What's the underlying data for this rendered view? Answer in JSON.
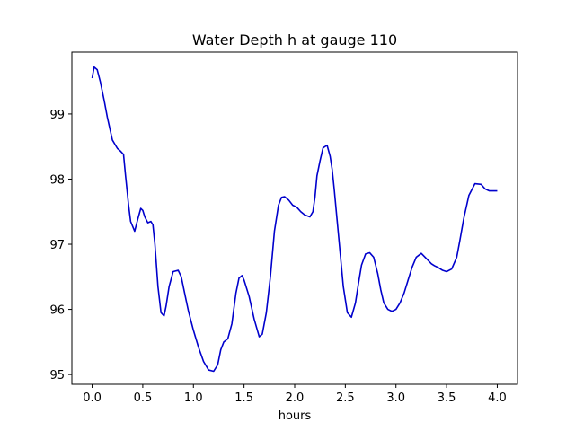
{
  "chart_data": {
    "type": "line",
    "title": "Water Depth h at gauge 110",
    "xlabel": "hours",
    "ylabel": "",
    "xlim": [
      -0.2,
      4.2
    ],
    "ylim": [
      94.85,
      99.95
    ],
    "xticks": [
      0.0,
      0.5,
      1.0,
      1.5,
      2.0,
      2.5,
      3.0,
      3.5,
      4.0
    ],
    "xtick_labels": [
      "0.0",
      "0.5",
      "1.0",
      "1.5",
      "2.0",
      "2.5",
      "3.0",
      "3.5",
      "4.0"
    ],
    "yticks": [
      95,
      96,
      97,
      98,
      99
    ],
    "ytick_labels": [
      "95",
      "96",
      "97",
      "98",
      "99"
    ],
    "grid": false,
    "series": [
      {
        "color": "#0000cc",
        "x": [
          0.0,
          0.02,
          0.05,
          0.08,
          0.12,
          0.15,
          0.2,
          0.25,
          0.28,
          0.31,
          0.33,
          0.36,
          0.38,
          0.42,
          0.45,
          0.48,
          0.5,
          0.52,
          0.55,
          0.58,
          0.6,
          0.62,
          0.65,
          0.68,
          0.71,
          0.73,
          0.76,
          0.8,
          0.85,
          0.88,
          0.92,
          0.95,
          1.0,
          1.05,
          1.1,
          1.15,
          1.2,
          1.24,
          1.27,
          1.3,
          1.34,
          1.38,
          1.42,
          1.45,
          1.48,
          1.5,
          1.55,
          1.6,
          1.65,
          1.68,
          1.72,
          1.76,
          1.8,
          1.84,
          1.87,
          1.9,
          1.94,
          1.98,
          2.02,
          2.06,
          2.1,
          2.15,
          2.18,
          2.2,
          2.22,
          2.25,
          2.28,
          2.32,
          2.35,
          2.37,
          2.39,
          2.42,
          2.45,
          2.48,
          2.52,
          2.56,
          2.6,
          2.63,
          2.66,
          2.7,
          2.74,
          2.78,
          2.82,
          2.85,
          2.88,
          2.92,
          2.96,
          3.0,
          3.04,
          3.08,
          3.12,
          3.16,
          3.2,
          3.25,
          3.3,
          3.35,
          3.38,
          3.42,
          3.46,
          3.5,
          3.55,
          3.6,
          3.63,
          3.67,
          3.72,
          3.78,
          3.84,
          3.88,
          3.92,
          3.95,
          3.98,
          4.0
        ],
        "y": [
          99.55,
          99.72,
          99.68,
          99.5,
          99.2,
          98.95,
          98.6,
          98.47,
          98.43,
          98.38,
          98.05,
          97.6,
          97.35,
          97.2,
          97.38,
          97.55,
          97.52,
          97.42,
          97.33,
          97.35,
          97.3,
          97.0,
          96.35,
          95.95,
          95.9,
          96.05,
          96.35,
          96.58,
          96.6,
          96.5,
          96.2,
          95.98,
          95.68,
          95.42,
          95.2,
          95.07,
          95.05,
          95.15,
          95.38,
          95.5,
          95.55,
          95.78,
          96.25,
          96.48,
          96.52,
          96.45,
          96.2,
          95.85,
          95.58,
          95.62,
          95.95,
          96.5,
          97.2,
          97.6,
          97.72,
          97.73,
          97.68,
          97.6,
          97.57,
          97.5,
          97.45,
          97.42,
          97.5,
          97.72,
          98.05,
          98.28,
          98.48,
          98.52,
          98.35,
          98.15,
          97.85,
          97.35,
          96.85,
          96.35,
          95.95,
          95.88,
          96.1,
          96.4,
          96.68,
          96.85,
          96.87,
          96.8,
          96.55,
          96.3,
          96.1,
          96.0,
          95.97,
          96.0,
          96.1,
          96.25,
          96.45,
          96.65,
          96.8,
          96.86,
          96.78,
          96.7,
          96.67,
          96.64,
          96.6,
          96.58,
          96.62,
          96.8,
          97.05,
          97.4,
          97.75,
          97.93,
          97.92,
          97.85,
          97.82,
          97.82,
          97.82,
          97.82
        ]
      }
    ]
  }
}
